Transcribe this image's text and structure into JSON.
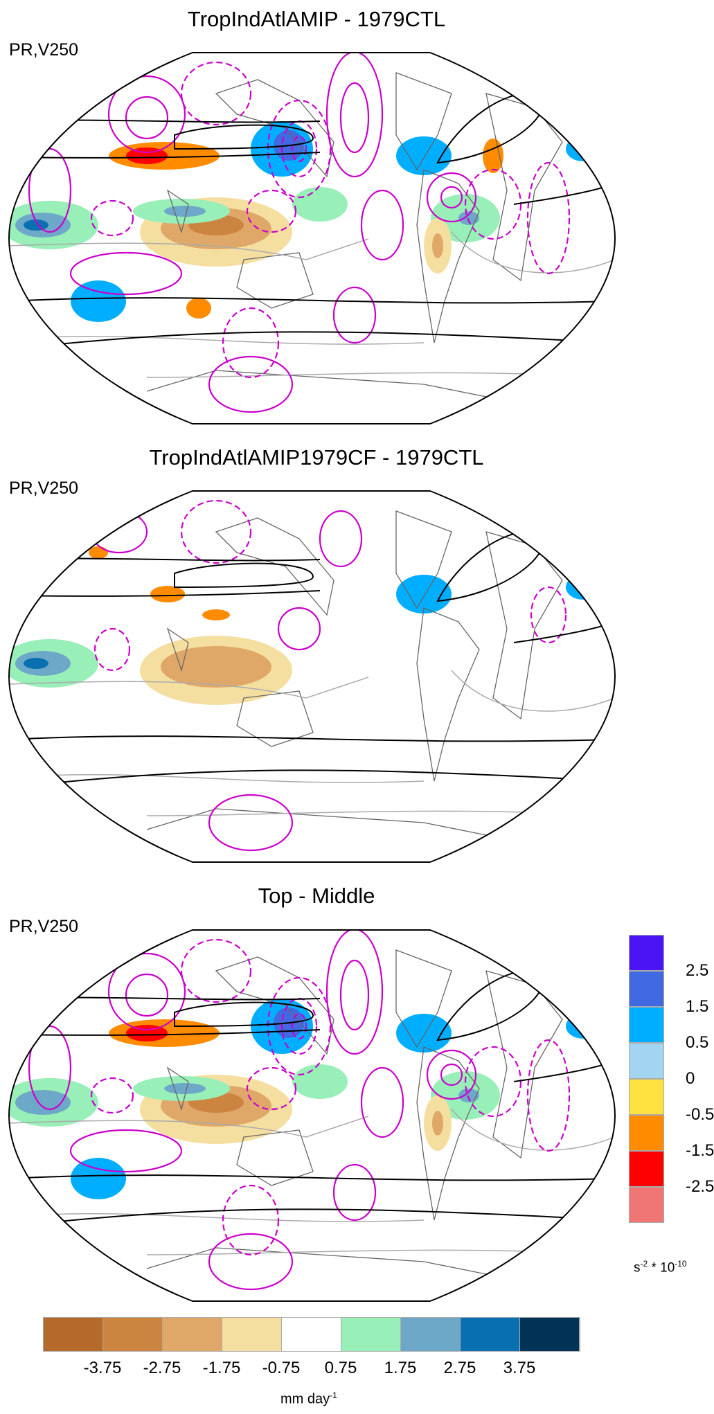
{
  "chart_data": [
    {
      "type": "heatmap",
      "title": "TropIndAtlAMIP - 1979CTL",
      "subtitle": "PR,V250",
      "projection": "Robinson global map",
      "fields": [
        "precipitation (shaded)",
        "V250 (contours)"
      ]
    },
    {
      "type": "heatmap",
      "title": "TropIndAtlAMIP1979CF - 1979CTL",
      "subtitle": "PR,V250",
      "projection": "Robinson global map",
      "fields": [
        "precipitation (shaded)",
        "V250 (contours)"
      ]
    },
    {
      "type": "heatmap",
      "title": "Top - Middle",
      "subtitle": "PR,V250",
      "projection": "Robinson global map",
      "fields": [
        "precipitation (shaded)",
        "V250 (contours)"
      ]
    }
  ],
  "right_legend": {
    "colors": [
      "#4B14F5",
      "#4169E1",
      "#00AEFF",
      "#A3D5F0",
      "#FFE240",
      "#FF8C00",
      "#FF0000",
      "#F07676"
    ],
    "labels": [
      "2.5",
      "1.5",
      "0.5",
      "0",
      "-0.5",
      "-1.5",
      "-2.5"
    ],
    "unit_base": "s",
    "unit_exp1": "-2",
    "unit_mid": " * 10",
    "unit_exp2": "-10"
  },
  "bottom_legend": {
    "colors": [
      "#B36A2B",
      "#CC8540",
      "#E0A868",
      "#F5DFA0",
      "#FFFFFF",
      "#98EFB8",
      "#6EA8C8",
      "#0870B0",
      "#003355"
    ],
    "labels": [
      "-3.75",
      "-2.75",
      "-1.75",
      "-0.75",
      "0.75",
      "1.75",
      "2.75",
      "3.75"
    ],
    "unit_base": "mm day",
    "unit_exp": "-1"
  }
}
